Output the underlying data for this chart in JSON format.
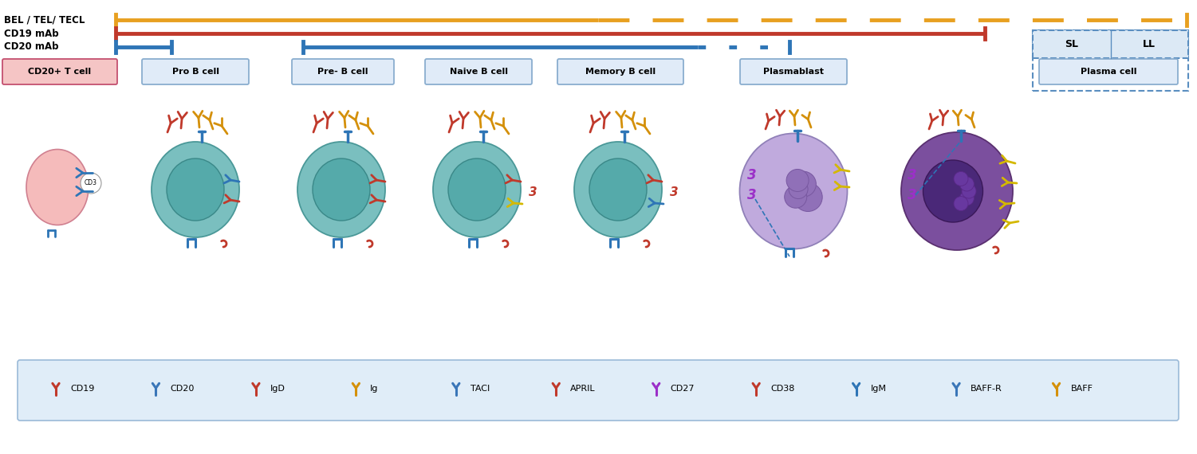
{
  "bg_color": "#ffffff",
  "fig_width": 15.01,
  "fig_height": 5.7,
  "timeline_labels": [
    "BEL / TEL/ TECL",
    "CD19 mAb",
    "CD20 mAb"
  ],
  "timeline_colors": [
    "#E8A020",
    "#C0392B",
    "#2E75B6"
  ],
  "cell_labels": [
    "CD20+ T cell",
    "Pro B cell",
    "Pre- B cell",
    "Naive B cell",
    "Memory B cell",
    "Plasmablast",
    "Plasma cell"
  ],
  "legend_items": [
    "CD19",
    "CD20",
    "IgD",
    "Ig",
    "TACI",
    "APRIL",
    "CD27",
    "CD38",
    "IgM",
    "BAFF-R",
    "BAFF"
  ],
  "legend_colors": [
    "#C0392B",
    "#3A76B8",
    "#C0392B",
    "#D4900A",
    "#3A76B8",
    "#C0392B",
    "#9B30C8",
    "#C0392B",
    "#2E75B6",
    "#3A76B8",
    "#D4900A"
  ]
}
